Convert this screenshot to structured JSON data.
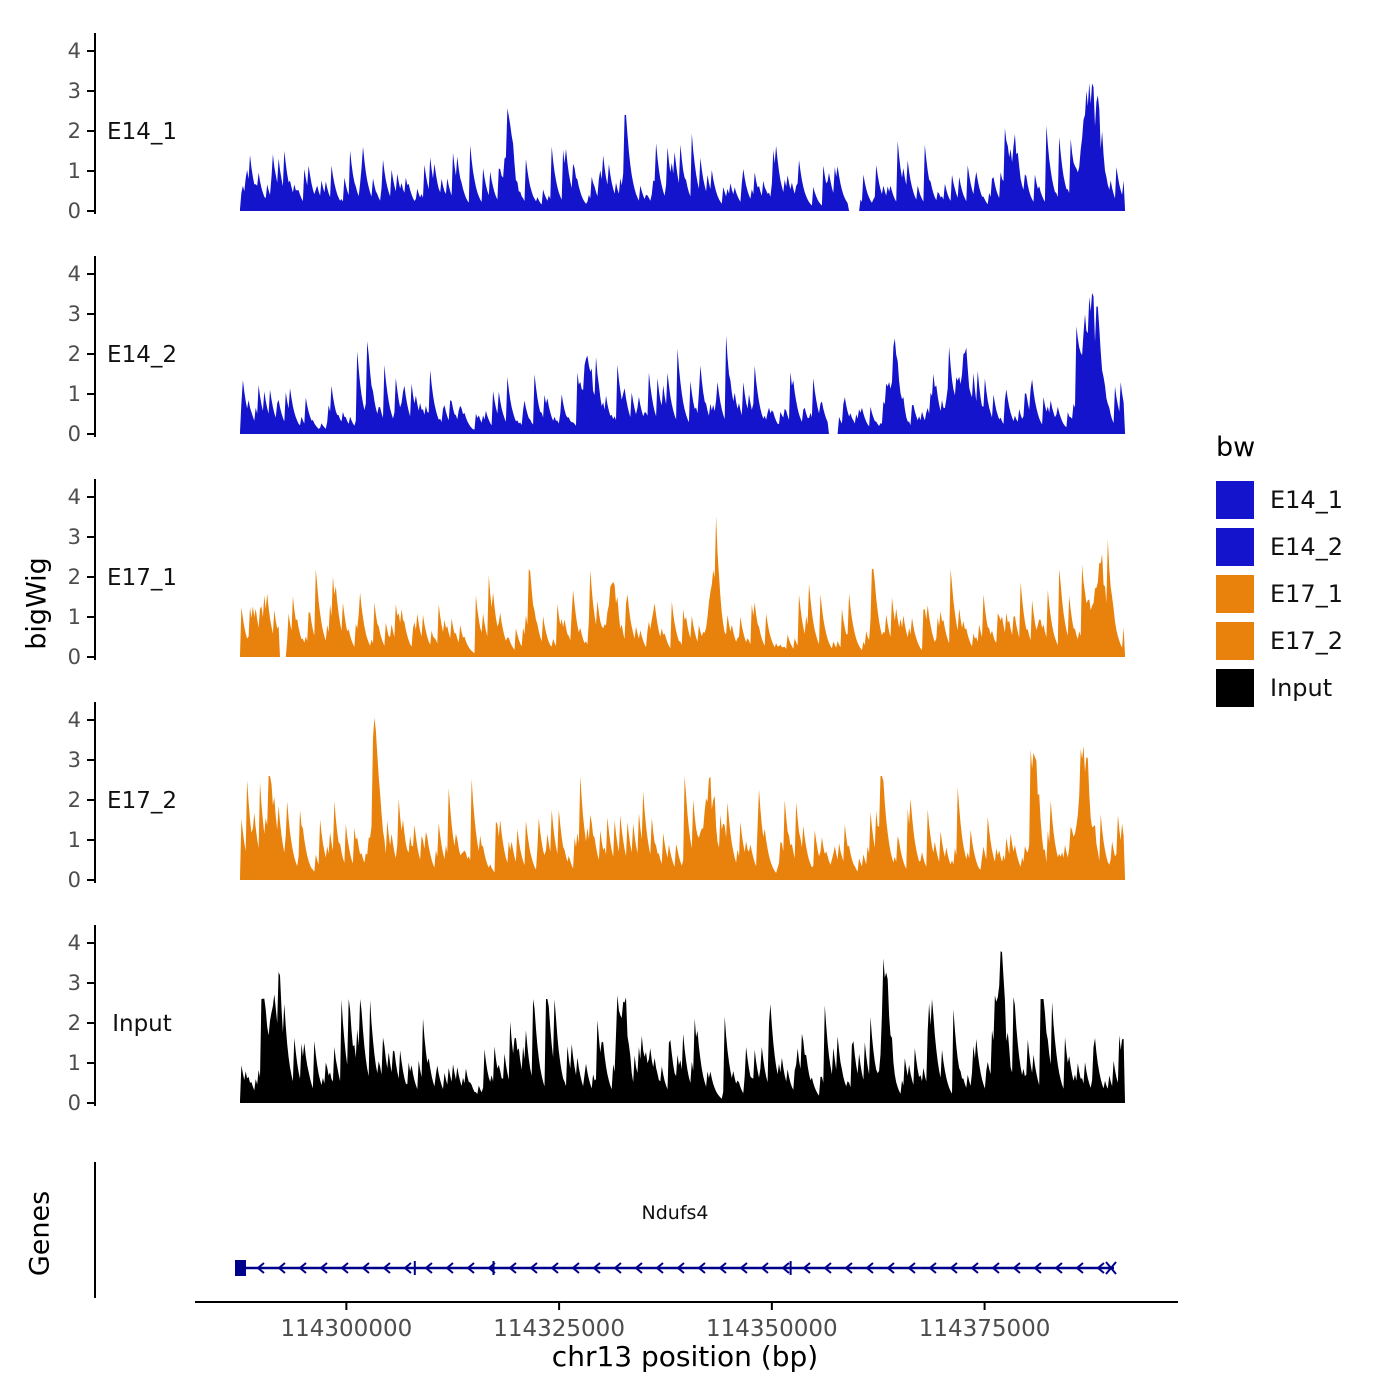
{
  "chart_data": {
    "type": "area",
    "title": "",
    "ylabel": "bigWig",
    "xlabel": "chr13 position (bp)",
    "ylim": [
      0,
      4.3
    ],
    "yticks": [
      0,
      1,
      2,
      3,
      4
    ],
    "xlim": [
      114287500,
      114391500
    ],
    "xticks": [
      {
        "value": 114300000,
        "label": "114300000"
      },
      {
        "value": 114325000,
        "label": "114325000"
      },
      {
        "value": 114350000,
        "label": "114350000"
      },
      {
        "value": 114375000,
        "label": "114375000"
      }
    ],
    "grid": false,
    "legend": {
      "title": "bw",
      "position": "right",
      "entries": [
        {
          "label": "E14_1",
          "color": "#1414CC"
        },
        {
          "label": "E14_2",
          "color": "#1414CC"
        },
        {
          "label": "E17_1",
          "color": "#E8820C"
        },
        {
          "label": "E17_2",
          "color": "#E8820C"
        },
        {
          "label": "Input",
          "color": "#000000"
        }
      ]
    },
    "series": [
      {
        "name": "E14_1",
        "color": "#1414CC",
        "seed": 1401,
        "n": 620,
        "base": 0.33,
        "spike_prob": 0.09,
        "spike_scale": 1.3,
        "clamp": 2.4,
        "peaks": [
          {
            "pos": 0.305,
            "height": 1.9,
            "width": 0.004
          },
          {
            "pos": 0.875,
            "height": 1.2,
            "width": 0.006
          },
          {
            "pos": 0.962,
            "height": 3.1,
            "width": 0.009
          }
        ],
        "gaps": [
          [
            0.688,
            0.7
          ]
        ],
        "approx_max": 3.9
      },
      {
        "name": "E14_2",
        "color": "#1414CC",
        "seed": 1402,
        "n": 620,
        "base": 0.4,
        "spike_prob": 0.1,
        "spike_scale": 1.4,
        "clamp": 2.5,
        "peaks": [
          {
            "pos": 0.395,
            "height": 1.6,
            "width": 0.005
          },
          {
            "pos": 0.74,
            "height": 1.6,
            "width": 0.006
          },
          {
            "pos": 0.82,
            "height": 1.8,
            "width": 0.006
          },
          {
            "pos": 0.962,
            "height": 3.4,
            "width": 0.008
          }
        ],
        "gaps": [
          [
            0.665,
            0.676
          ]
        ],
        "approx_max": 4.2
      },
      {
        "name": "E17_1",
        "color": "#E8820C",
        "seed": 1701,
        "n": 620,
        "base": 0.45,
        "spike_prob": 0.1,
        "spike_scale": 1.1,
        "clamp": 2.2,
        "peaks": [
          {
            "pos": 0.42,
            "height": 1.6,
            "width": 0.005
          },
          {
            "pos": 0.535,
            "height": 1.7,
            "width": 0.005
          },
          {
            "pos": 0.97,
            "height": 1.9,
            "width": 0.008
          }
        ],
        "gaps": [
          [
            0.045,
            0.052
          ]
        ],
        "approx_max": 2.6
      },
      {
        "name": "E17_2",
        "color": "#E8820C",
        "seed": 1702,
        "n": 620,
        "base": 0.48,
        "spike_prob": 0.12,
        "spike_scale": 1.3,
        "clamp": 2.6,
        "peaks": [
          {
            "pos": 0.155,
            "height": 2.2,
            "width": 0.005
          },
          {
            "pos": 0.53,
            "height": 2.1,
            "width": 0.006
          },
          {
            "pos": 0.9,
            "height": 2.2,
            "width": 0.005
          },
          {
            "pos": 0.955,
            "height": 2.9,
            "width": 0.007
          }
        ],
        "gaps": [],
        "approx_max": 3.6
      },
      {
        "name": "Input",
        "color": "#000000",
        "seed": 9001,
        "n": 620,
        "base": 0.6,
        "spike_prob": 0.12,
        "spike_scale": 1.2,
        "clamp": 2.6,
        "peaks": [
          {
            "pos": 0.04,
            "height": 2.2,
            "width": 0.004
          },
          {
            "pos": 0.435,
            "height": 2.0,
            "width": 0.004
          },
          {
            "pos": 0.73,
            "height": 2.6,
            "width": 0.004
          },
          {
            "pos": 0.86,
            "height": 2.7,
            "width": 0.005
          }
        ],
        "gaps": [],
        "approx_max": 3.5
      }
    ],
    "gene_panel": {
      "panel_label": "Genes",
      "gene_name": "Ndufs4",
      "color": "#00008B",
      "strand": "-",
      "gene_start": 114288000,
      "gene_end": 114390500,
      "exon_ticks": [
        0.2,
        0.29,
        0.63
      ],
      "arrow_spacing_px": 21
    }
  }
}
